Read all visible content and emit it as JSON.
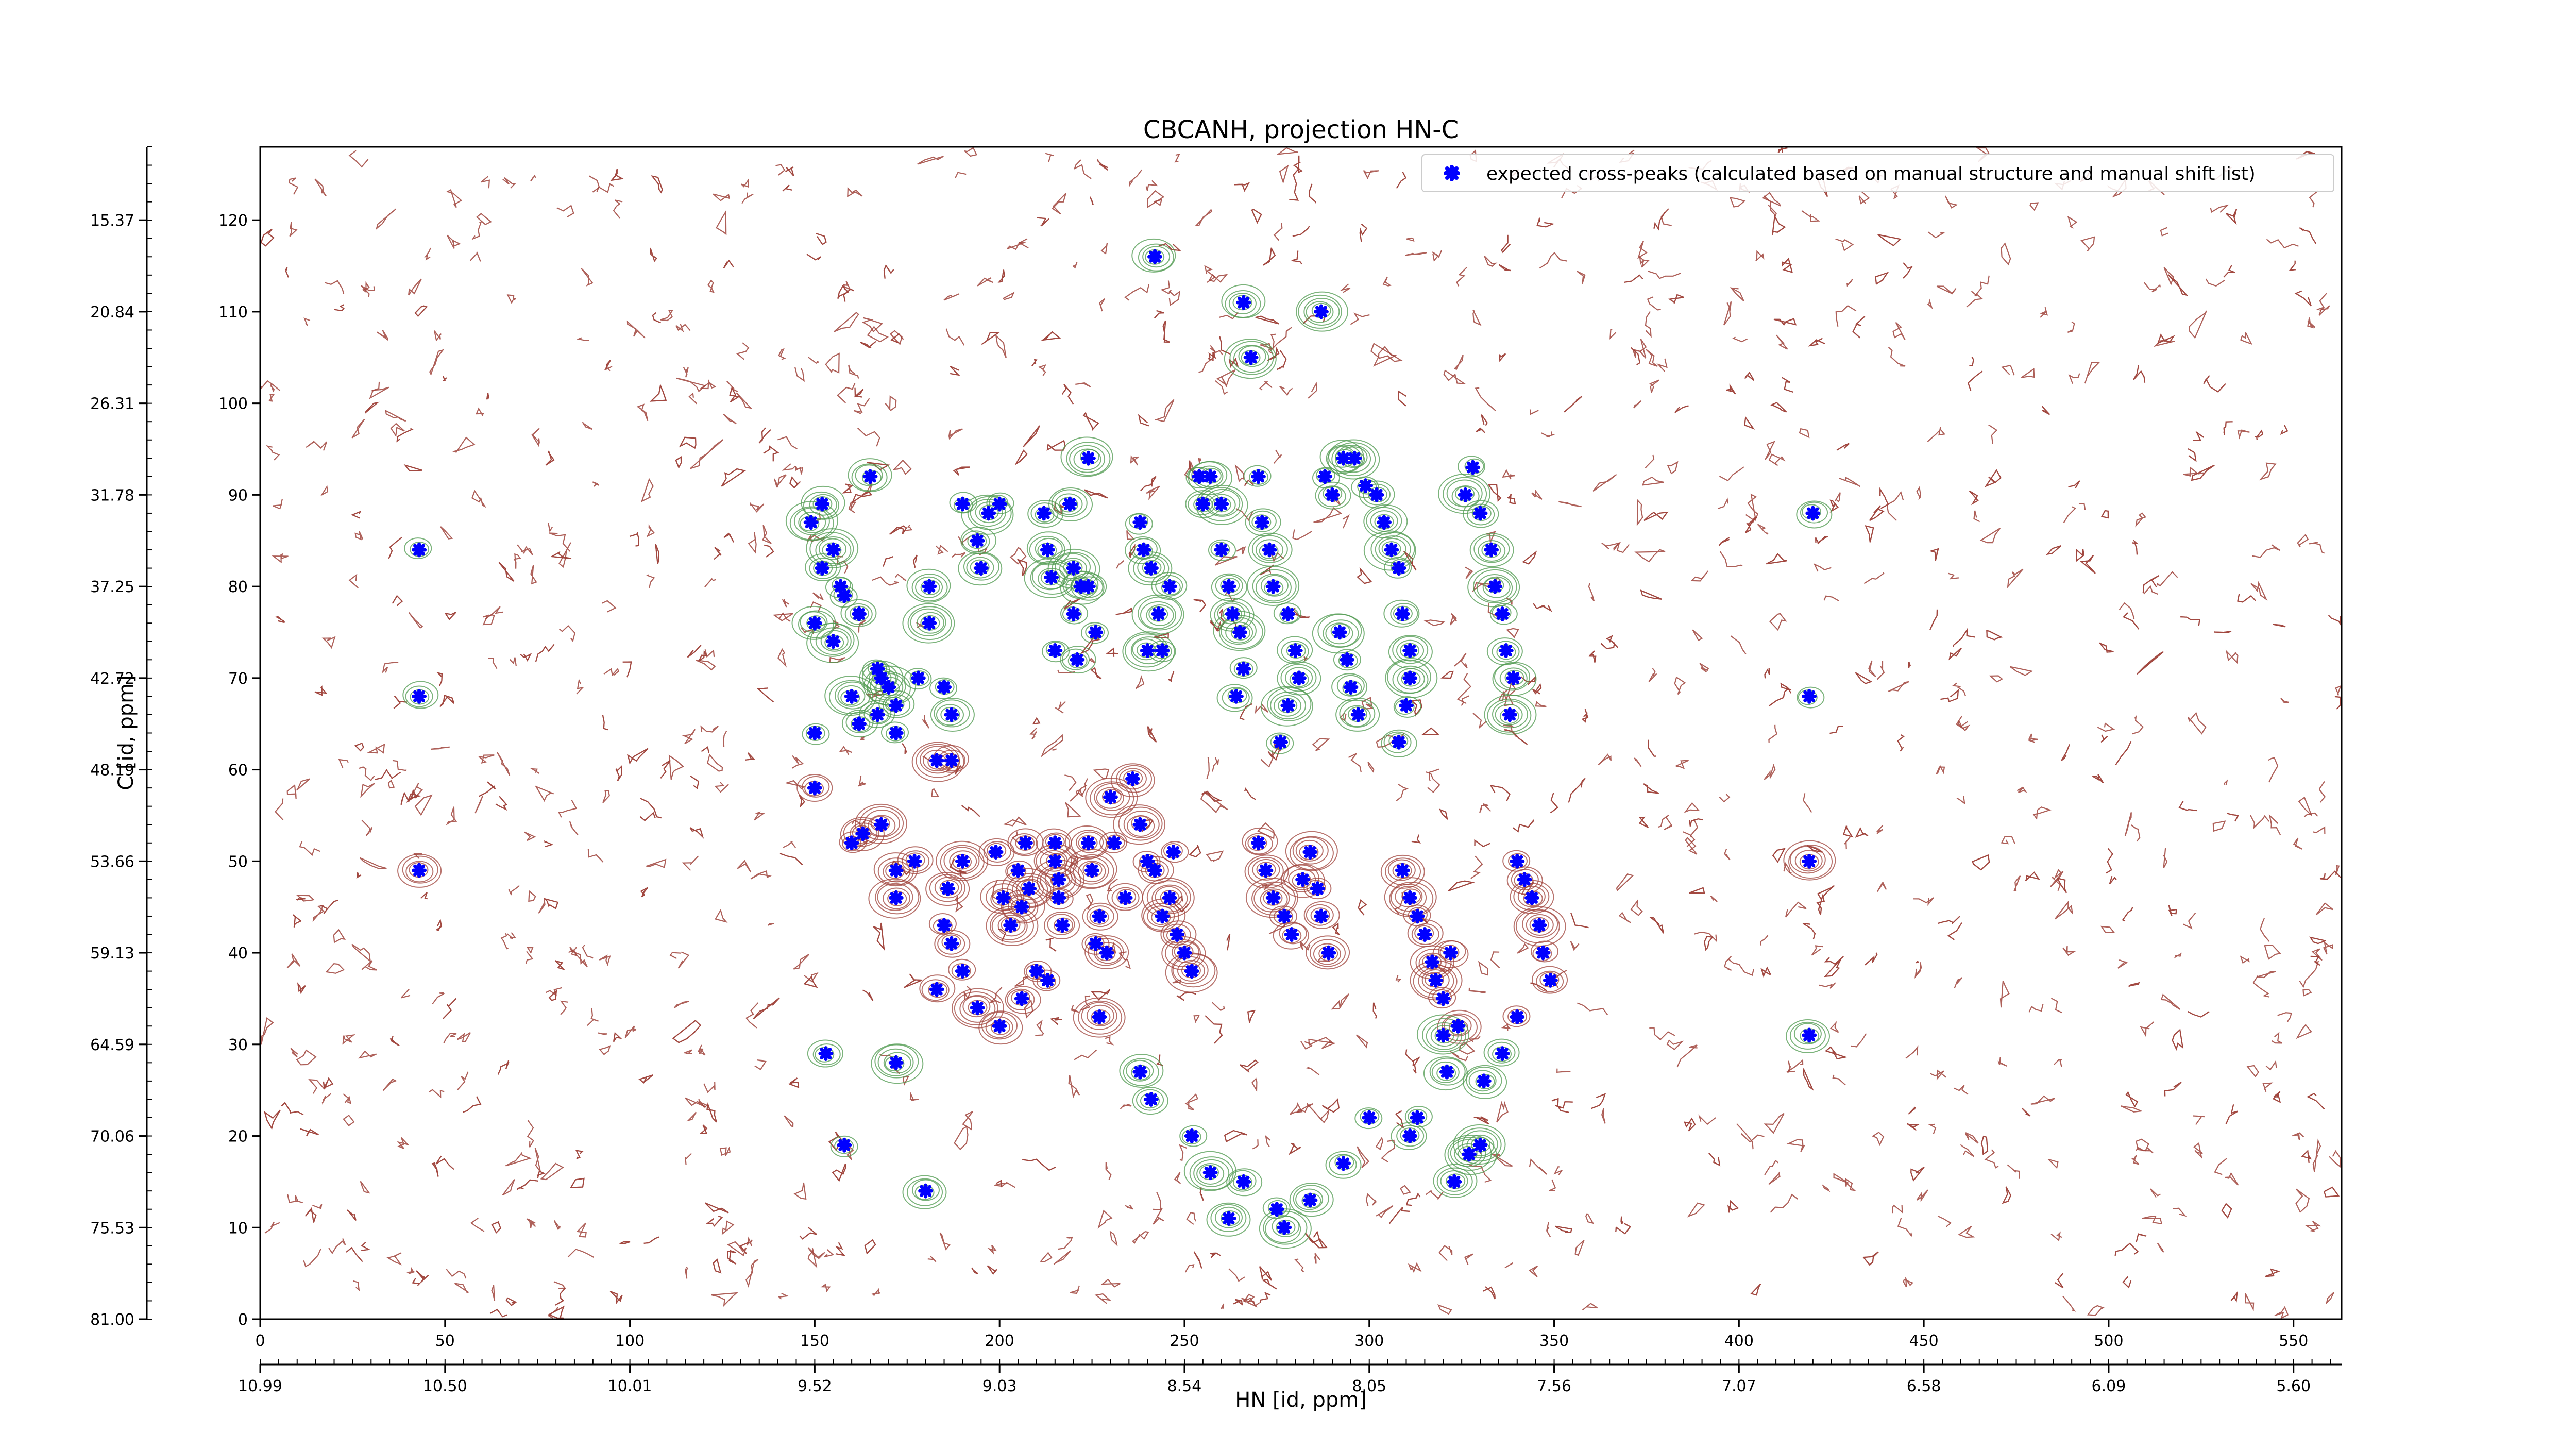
{
  "chart_data": {
    "type": "scatter",
    "title": "CBCANH, projection HN-C",
    "xlabel": "HN [id, ppm]",
    "ylabel": "C [id, ppm]",
    "x_index_ticks": [
      0,
      50,
      100,
      150,
      200,
      250,
      300,
      350,
      400,
      450,
      500,
      550
    ],
    "x_ppm_ticks": [
      "10.99",
      "10.50",
      "10.01",
      "9.52",
      "9.03",
      "8.54",
      "8.05",
      "7.56",
      "7.07",
      "6.58",
      "6.09",
      "5.60"
    ],
    "y_index_ticks": [
      0,
      10,
      20,
      30,
      40,
      50,
      60,
      70,
      80,
      90,
      100,
      110,
      120
    ],
    "y_ppm_ticks": [
      "81.00",
      "75.53",
      "70.06",
      "64.59",
      "59.13",
      "53.66",
      "48.19",
      "42.72",
      "37.25",
      "31.78",
      "26.31",
      "20.84",
      "15.37"
    ],
    "xlim": [
      0,
      563
    ],
    "ylim": [
      0,
      128
    ],
    "legend": {
      "label": "expected cross-peaks (calculated based on manual structure and manual shift list)",
      "placement": "top-right"
    },
    "colors": {
      "marker": "#0000ff",
      "negative_contour": "#a0443c",
      "positive_contour": "#4f9a4f"
    },
    "series": [
      {
        "name": "expected cross-peaks (calculated based on manual structure and manual shift list)",
        "points": [
          [
            43,
            84
          ],
          [
            43,
            68
          ],
          [
            43,
            49
          ],
          [
            149,
            87
          ],
          [
            150,
            64
          ],
          [
            150,
            58
          ],
          [
            152,
            89
          ],
          [
            155,
            84
          ],
          [
            157,
            80
          ],
          [
            152,
            82
          ],
          [
            150,
            76
          ],
          [
            155,
            74
          ],
          [
            158,
            79
          ],
          [
            162,
            77
          ],
          [
            165,
            92
          ],
          [
            160,
            68
          ],
          [
            160,
            52
          ],
          [
            162,
            65
          ],
          [
            163,
            53
          ],
          [
            168,
            54
          ],
          [
            167,
            71
          ],
          [
            167,
            66
          ],
          [
            168,
            70
          ],
          [
            170,
            69
          ],
          [
            172,
            64
          ],
          [
            172,
            67
          ],
          [
            172,
            49
          ],
          [
            172,
            46
          ],
          [
            178,
            70
          ],
          [
            177,
            50
          ],
          [
            181,
            80
          ],
          [
            181,
            76
          ],
          [
            185,
            69
          ],
          [
            187,
            61
          ],
          [
            187,
            66
          ],
          [
            183,
            61
          ],
          [
            185,
            43
          ],
          [
            183,
            36
          ],
          [
            186,
            47
          ],
          [
            190,
            50
          ],
          [
            190,
            89
          ],
          [
            194,
            85
          ],
          [
            195,
            82
          ],
          [
            197,
            88
          ],
          [
            200,
            89
          ],
          [
            199,
            51
          ],
          [
            201,
            46
          ],
          [
            203,
            43
          ],
          [
            205,
            49
          ],
          [
            207,
            52
          ],
          [
            206,
            45
          ],
          [
            208,
            47
          ],
          [
            210,
            38
          ],
          [
            212,
            88
          ],
          [
            213,
            84
          ],
          [
            214,
            81
          ],
          [
            215,
            73
          ],
          [
            215,
            52
          ],
          [
            215,
            50
          ],
          [
            216,
            48
          ],
          [
            216,
            46
          ],
          [
            217,
            43
          ],
          [
            219,
            89
          ],
          [
            220,
            82
          ],
          [
            220,
            77
          ],
          [
            221,
            72
          ],
          [
            222,
            80
          ],
          [
            224,
            94
          ],
          [
            226,
            75
          ],
          [
            224,
            80
          ],
          [
            224,
            52
          ],
          [
            225,
            49
          ],
          [
            226,
            41
          ],
          [
            227,
            44
          ],
          [
            229,
            40
          ],
          [
            230,
            57
          ],
          [
            231,
            52
          ],
          [
            234,
            46
          ],
          [
            236,
            59
          ],
          [
            238,
            54
          ],
          [
            238,
            87
          ],
          [
            239,
            84
          ],
          [
            241,
            82
          ],
          [
            243,
            77
          ],
          [
            244,
            73
          ],
          [
            246,
            80
          ],
          [
            242,
            116
          ],
          [
            240,
            73
          ],
          [
            240,
            50
          ],
          [
            242,
            49
          ],
          [
            244,
            44
          ],
          [
            246,
            46
          ],
          [
            247,
            51
          ],
          [
            248,
            42
          ],
          [
            250,
            40
          ],
          [
            252,
            38
          ],
          [
            254,
            92
          ],
          [
            255,
            89
          ],
          [
            257,
            92
          ],
          [
            260,
            89
          ],
          [
            260,
            84
          ],
          [
            262,
            80
          ],
          [
            263,
            77
          ],
          [
            265,
            75
          ],
          [
            266,
            71
          ],
          [
            264,
            68
          ],
          [
            266,
            111
          ],
          [
            268,
            105
          ],
          [
            270,
            92
          ],
          [
            271,
            87
          ],
          [
            273,
            84
          ],
          [
            274,
            80
          ],
          [
            278,
            77
          ],
          [
            280,
            73
          ],
          [
            281,
            70
          ],
          [
            278,
            67
          ],
          [
            276,
            63
          ],
          [
            270,
            52
          ],
          [
            272,
            49
          ],
          [
            274,
            46
          ],
          [
            277,
            44
          ],
          [
            279,
            42
          ],
          [
            282,
            48
          ],
          [
            284,
            51
          ],
          [
            286,
            47
          ],
          [
            287,
            44
          ],
          [
            289,
            40
          ],
          [
            292,
            75
          ],
          [
            294,
            72
          ],
          [
            295,
            69
          ],
          [
            297,
            66
          ],
          [
            287,
            110
          ],
          [
            288,
            92
          ],
          [
            290,
            90
          ],
          [
            293,
            94
          ],
          [
            296,
            94
          ],
          [
            299,
            91
          ],
          [
            302,
            90
          ],
          [
            304,
            87
          ],
          [
            306,
            84
          ],
          [
            308,
            82
          ],
          [
            309,
            77
          ],
          [
            311,
            73
          ],
          [
            311,
            70
          ],
          [
            310,
            67
          ],
          [
            308,
            63
          ],
          [
            309,
            49
          ],
          [
            311,
            46
          ],
          [
            313,
            44
          ],
          [
            315,
            42
          ],
          [
            317,
            39
          ],
          [
            318,
            37
          ],
          [
            320,
            35
          ],
          [
            322,
            40
          ],
          [
            324,
            32
          ],
          [
            326,
            90
          ],
          [
            328,
            93
          ],
          [
            330,
            88
          ],
          [
            333,
            84
          ],
          [
            334,
            80
          ],
          [
            336,
            77
          ],
          [
            337,
            73
          ],
          [
            339,
            70
          ],
          [
            338,
            66
          ],
          [
            340,
            50
          ],
          [
            342,
            48
          ],
          [
            344,
            46
          ],
          [
            346,
            43
          ],
          [
            347,
            40
          ],
          [
            349,
            37
          ],
          [
            321,
            27
          ],
          [
            320,
            31
          ],
          [
            313,
            22
          ],
          [
            311,
            20
          ],
          [
            323,
            15
          ],
          [
            327,
            18
          ],
          [
            340,
            33
          ],
          [
            336,
            29
          ],
          [
            331,
            26
          ],
          [
            330,
            19
          ],
          [
            300,
            22
          ],
          [
            293,
            17
          ],
          [
            284,
            13
          ],
          [
            277,
            10
          ],
          [
            275,
            12
          ],
          [
            266,
            15
          ],
          [
            262,
            11
          ],
          [
            257,
            16
          ],
          [
            252,
            20
          ],
          [
            241,
            24
          ],
          [
            238,
            27
          ],
          [
            227,
            33
          ],
          [
            213,
            37
          ],
          [
            206,
            35
          ],
          [
            200,
            32
          ],
          [
            194,
            34
          ],
          [
            190,
            38
          ],
          [
            187,
            41
          ],
          [
            180,
            14
          ],
          [
            172,
            28
          ],
          [
            158,
            19
          ],
          [
            153,
            29
          ],
          [
            419,
            31
          ],
          [
            419,
            50
          ],
          [
            419,
            68
          ],
          [
            420,
            88
          ]
        ]
      }
    ]
  }
}
